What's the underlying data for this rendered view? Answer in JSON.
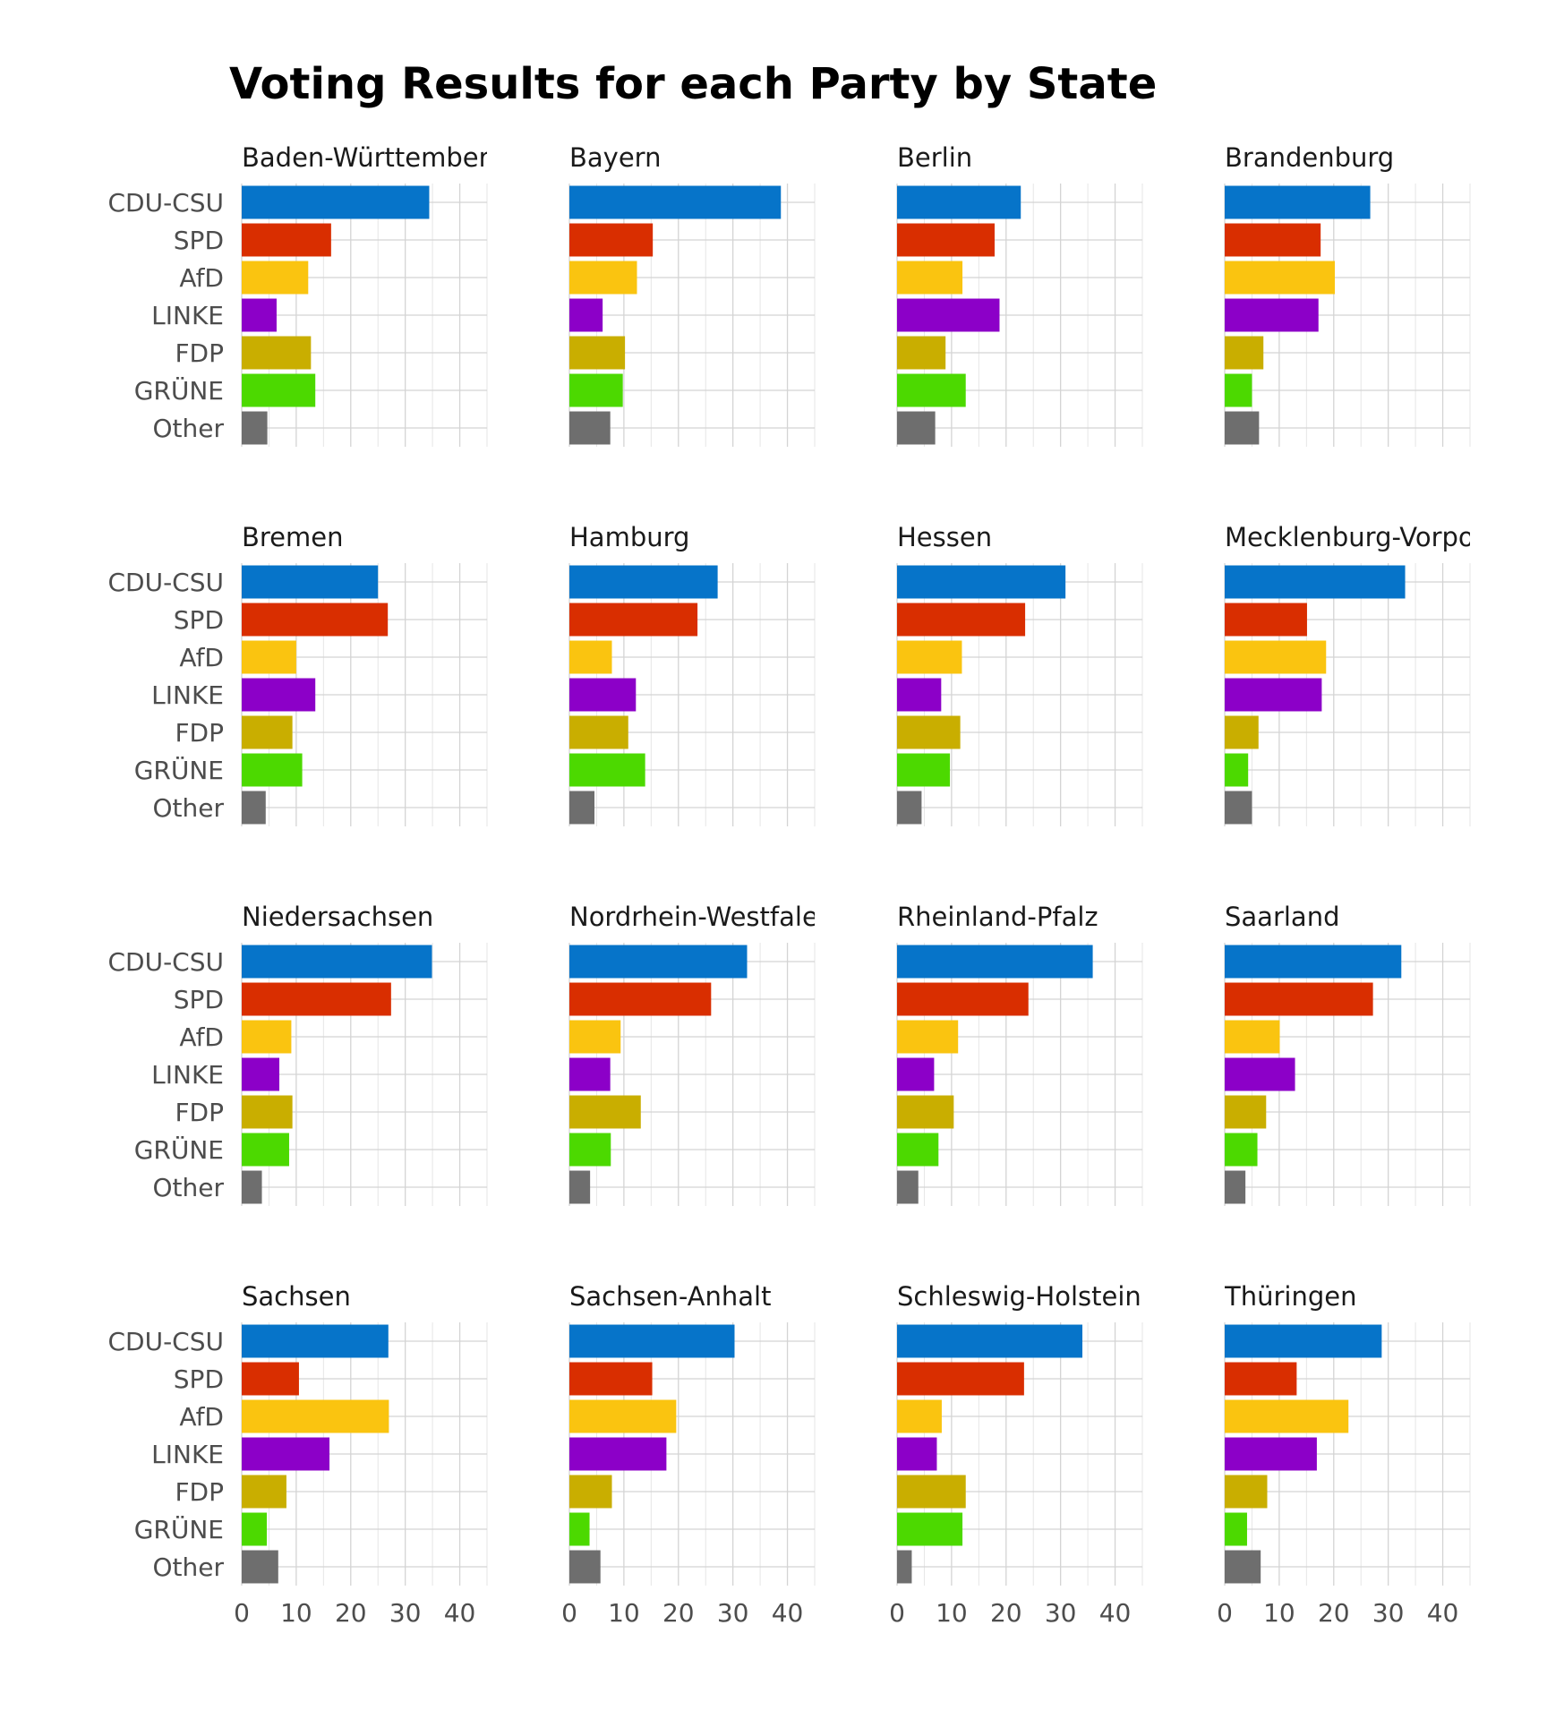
{
  "chart_data": {
    "type": "bar",
    "orientation": "horizontal",
    "title": "Voting Results for each Party by State",
    "xlabel": "",
    "ylabel": "",
    "xlim": [
      0,
      40
    ],
    "x_ticks": [
      0,
      10,
      20,
      30,
      40
    ],
    "grid": true,
    "categories": [
      "CDU-CSU",
      "SPD",
      "AfD",
      "LINKE",
      "FDP",
      "GRÜNE",
      "Other"
    ],
    "colors": [
      "#0674C9",
      "#D92E00",
      "#FAC410",
      "#8C00C8",
      "#C9AE00",
      "#4CD900",
      "#6E6E6E"
    ],
    "panels": [
      {
        "title": "Baden-Württemberg",
        "values": [
          34.4,
          16.4,
          12.2,
          6.4,
          12.7,
          13.5,
          4.7
        ]
      },
      {
        "title": "Bayern",
        "values": [
          38.8,
          15.3,
          12.4,
          6.1,
          10.2,
          9.8,
          7.5
        ]
      },
      {
        "title": "Berlin",
        "values": [
          22.7,
          17.9,
          12.0,
          18.8,
          8.9,
          12.6,
          7.0
        ]
      },
      {
        "title": "Brandenburg",
        "values": [
          26.7,
          17.6,
          20.2,
          17.2,
          7.1,
          5.0,
          6.3
        ]
      },
      {
        "title": "Bremen",
        "values": [
          25.0,
          26.8,
          10.0,
          13.5,
          9.3,
          11.1,
          4.4
        ]
      },
      {
        "title": "Hamburg",
        "values": [
          27.2,
          23.5,
          7.8,
          12.2,
          10.8,
          13.9,
          4.6
        ]
      },
      {
        "title": "Hessen",
        "values": [
          30.9,
          23.5,
          11.9,
          8.1,
          11.6,
          9.7,
          4.5
        ]
      },
      {
        "title": "Mecklenburg-Vorpommern",
        "values": [
          33.1,
          15.1,
          18.6,
          17.8,
          6.2,
          4.3,
          5.0
        ]
      },
      {
        "title": "Niedersachsen",
        "values": [
          34.9,
          27.4,
          9.1,
          6.9,
          9.3,
          8.7,
          3.7
        ]
      },
      {
        "title": "Nordrhein-Westfalen",
        "values": [
          32.6,
          26.0,
          9.4,
          7.5,
          13.1,
          7.6,
          3.8
        ]
      },
      {
        "title": "Rheinland-Pfalz",
        "values": [
          35.9,
          24.1,
          11.2,
          6.8,
          10.4,
          7.6,
          3.9
        ]
      },
      {
        "title": "Saarland",
        "values": [
          32.4,
          27.2,
          10.1,
          12.9,
          7.6,
          6.0,
          3.8
        ]
      },
      {
        "title": "Sachsen",
        "values": [
          26.9,
          10.5,
          27.0,
          16.1,
          8.2,
          4.6,
          6.7
        ]
      },
      {
        "title": "Sachsen-Anhalt",
        "values": [
          30.3,
          15.2,
          19.6,
          17.8,
          7.8,
          3.7,
          5.7
        ]
      },
      {
        "title": "Schleswig-Holstein",
        "values": [
          34.0,
          23.3,
          8.2,
          7.3,
          12.6,
          12.0,
          2.7
        ]
      },
      {
        "title": "Thüringen",
        "values": [
          28.8,
          13.2,
          22.7,
          16.9,
          7.8,
          4.1,
          6.6
        ]
      }
    ]
  }
}
